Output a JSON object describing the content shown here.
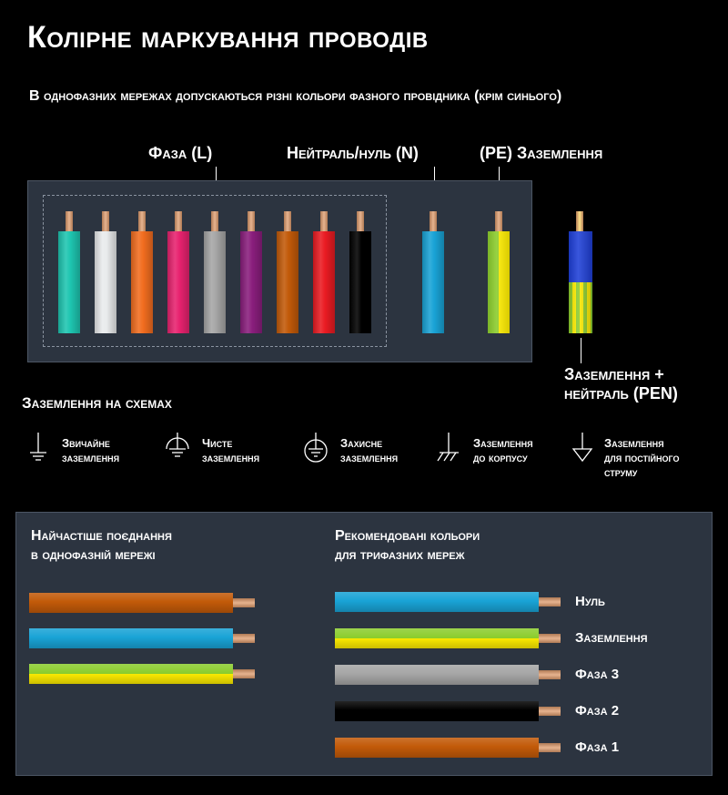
{
  "title": "Колірне маркування проводів",
  "subtitle": "В однофазних мережах допускаються різні кольори фазного провідника (крім синього)",
  "labels": {
    "phase": "Фаза (L)",
    "neutral": "Нейтраль/нуль (N)",
    "pe": "(PE) Заземлення",
    "pen_line1": "Заземлення +",
    "pen_line2": "нейтраль (PEN)"
  },
  "colors": {
    "background": "#000000",
    "panel": "#2c3440",
    "copper": "#d9a47f"
  },
  "phase_wires": [
    {
      "name": "turquoise",
      "color": "#1ec6b1"
    },
    {
      "name": "white",
      "color": "#e9ebec"
    },
    {
      "name": "orange",
      "color": "#f26d1f"
    },
    {
      "name": "pink",
      "color": "#e8226f"
    },
    {
      "name": "grey",
      "color": "#a6a6a6"
    },
    {
      "name": "violet",
      "color": "#8a1e7d"
    },
    {
      "name": "brown",
      "color": "#c25a09"
    },
    {
      "name": "red",
      "color": "#ea1b22"
    },
    {
      "name": "black",
      "color": "#000000"
    }
  ],
  "neutral_wire": {
    "color": "#19a3d6"
  },
  "pe_wire": {
    "colors": [
      "#8ccd2e",
      "#ffee00"
    ]
  },
  "pen_wire": {
    "colors": [
      "#1e3fd8",
      "#8ccd2e",
      "#ffee00"
    ]
  },
  "symbols_title": "Заземлення на схемах",
  "symbols": [
    {
      "icon": "ground-icon",
      "line1": "Звичайне",
      "line2": "заземлення",
      "line3": ""
    },
    {
      "icon": "clean-ground-icon",
      "line1": "Чисте",
      "line2": "заземлення",
      "line3": ""
    },
    {
      "icon": "protective-ground-icon",
      "line1": "Захисне",
      "line2": "заземлення",
      "line3": ""
    },
    {
      "icon": "chassis-ground-icon",
      "line1": "Заземлення",
      "line2": "до корпусу",
      "line3": ""
    },
    {
      "icon": "dc-ground-icon",
      "line1": "Заземлення",
      "line2": "для постійного",
      "line3": "струму"
    }
  ],
  "single_phase": {
    "title_line1": "Найчастіше поєднання",
    "title_line2": "в однофазній мережі",
    "wires": [
      {
        "name": "phase-brown",
        "colors": [
          "#c25a09"
        ]
      },
      {
        "name": "neutral-blue",
        "colors": [
          "#19a3d6"
        ]
      },
      {
        "name": "ground-green-yellow",
        "colors": [
          "#8ccd2e",
          "#ffee00"
        ]
      }
    ]
  },
  "three_phase": {
    "title_line1": "Рекомендовані кольори",
    "title_line2": "для трифазних мереж",
    "wires": [
      {
        "label": "Нуль",
        "colors": [
          "#19a3d6"
        ]
      },
      {
        "label": "Заземлення",
        "colors": [
          "#8ccd2e",
          "#ffee00"
        ]
      },
      {
        "label": "Фаза 3",
        "colors": [
          "#a6a6a6"
        ]
      },
      {
        "label": "Фаза 2",
        "colors": [
          "#000000"
        ]
      },
      {
        "label": "Фаза 1",
        "colors": [
          "#c25a09"
        ]
      }
    ]
  }
}
